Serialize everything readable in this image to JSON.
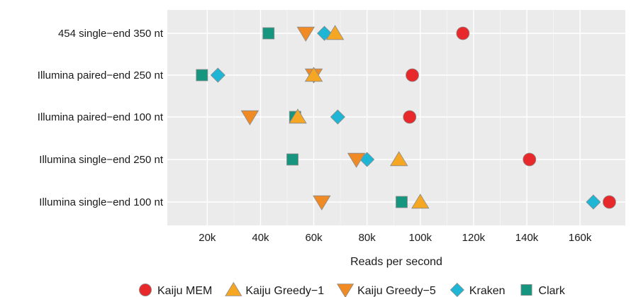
{
  "chart_data": {
    "type": "scatter",
    "title": "",
    "xlabel": "Reads per second",
    "ylabel": "",
    "xlim": [
      5000,
      177000
    ],
    "x_ticks": [
      20000,
      40000,
      60000,
      80000,
      100000,
      120000,
      140000,
      160000
    ],
    "x_tick_labels": [
      "20k",
      "40k",
      "60k",
      "80k",
      "100k",
      "120k",
      "140k",
      "160k"
    ],
    "categories": [
      "454 single−end 350 nt",
      "Illumina paired−end 250 nt",
      "Illumina paired−end 100 nt",
      "Illumina single−end 250 nt",
      "Illumina single−end 100 nt"
    ],
    "grid": true,
    "legend_position": "bottom",
    "series": [
      {
        "name": "Kaiju MEM",
        "marker": "circle",
        "color": "#e8292b",
        "values": [
          116000,
          97000,
          96000,
          141000,
          171000
        ]
      },
      {
        "name": "Kaiju Greedy−1",
        "marker": "triangle-up",
        "color": "#f5a623",
        "values": [
          68000,
          60000,
          54000,
          92000,
          100000
        ]
      },
      {
        "name": "Kaiju Greedy−5",
        "marker": "triangle-down",
        "color": "#f08a24",
        "values": [
          57000,
          60000,
          36000,
          76000,
          63000
        ]
      },
      {
        "name": "Kraken",
        "marker": "diamond",
        "color": "#1fb6d6",
        "values": [
          64000,
          24000,
          69000,
          80000,
          165000
        ]
      },
      {
        "name": "Clark",
        "marker": "square",
        "color": "#16967f",
        "values": [
          43000,
          18000,
          53000,
          52000,
          93000
        ]
      }
    ]
  }
}
